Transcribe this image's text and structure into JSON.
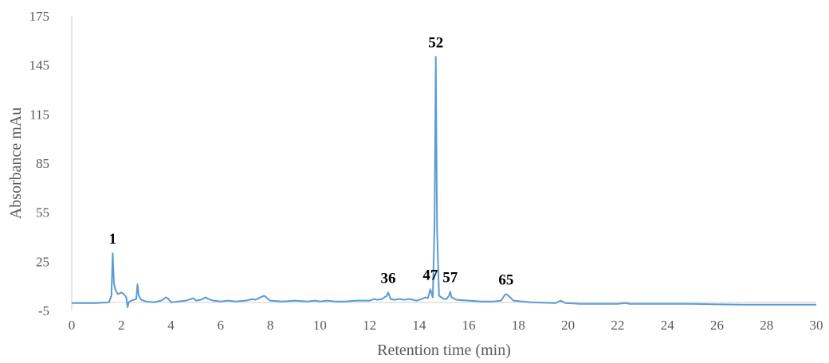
{
  "chart_data": {
    "type": "line",
    "title": "",
    "xlabel": "Retention time (min)",
    "ylabel": "Absorbance mAu",
    "xlim": [
      0,
      30
    ],
    "ylim": [
      -5,
      175
    ],
    "xticks": [
      0,
      2,
      4,
      6,
      8,
      10,
      12,
      14,
      16,
      18,
      20,
      22,
      24,
      26,
      28,
      30
    ],
    "yticks": [
      -5,
      25,
      55,
      85,
      115,
      145,
      175
    ],
    "grid": false,
    "legend": "none",
    "line_color": "#5b9bd5",
    "series": [
      {
        "x": [
          0,
          1.0,
          1.5,
          1.6,
          1.65,
          1.7,
          1.75,
          1.85,
          2.0,
          2.1,
          2.2,
          2.25,
          2.3,
          2.4,
          2.6,
          2.65,
          2.7,
          2.8,
          3.0,
          3.3,
          3.6,
          3.8,
          3.9,
          4.0,
          4.3,
          4.6,
          4.8,
          4.9,
          5.0,
          5.2,
          5.4,
          5.5,
          5.7,
          6.0,
          6.3,
          6.6,
          7.0,
          7.3,
          7.4,
          7.6,
          7.75,
          7.8,
          8.0,
          8.5,
          9.0,
          9.5,
          9.8,
          10.0,
          10.3,
          10.6,
          11.0,
          11.5,
          12.0,
          12.2,
          12.3,
          12.5,
          12.7,
          12.75,
          12.85,
          13.0,
          13.2,
          13.4,
          13.6,
          13.9,
          14.1,
          14.25,
          14.35,
          14.45,
          14.55,
          14.62,
          14.67,
          14.72,
          14.8,
          15.0,
          15.1,
          15.2,
          15.25,
          15.3,
          15.5,
          16.0,
          16.5,
          17.0,
          17.3,
          17.45,
          17.5,
          17.6,
          17.8,
          18.5,
          19.5,
          19.7,
          19.9,
          20.5,
          22.0,
          22.3,
          22.5,
          25.0,
          27.0,
          30.0
        ],
        "y": [
          -0.5,
          -0.5,
          0,
          4,
          30,
          12,
          8,
          5,
          6,
          5,
          3,
          -3,
          0,
          1,
          2,
          11,
          4,
          1.5,
          0.5,
          0,
          1,
          3,
          2,
          0,
          0.5,
          1,
          2,
          2.5,
          1,
          1.5,
          3,
          2,
          1,
          0.5,
          1,
          0.5,
          1,
          2,
          1.5,
          3,
          4,
          3.5,
          1,
          0.5,
          1,
          0.5,
          1,
          0.5,
          1,
          0.5,
          0.5,
          1,
          1,
          2,
          1.5,
          2,
          4,
          6,
          2,
          1.5,
          2,
          1.5,
          2,
          1,
          2,
          3,
          2.5,
          8,
          3,
          50,
          150,
          45,
          4,
          2,
          2,
          4,
          6.5,
          3,
          1.5,
          1,
          0.5,
          0.5,
          1,
          4.5,
          5,
          4,
          1,
          0,
          -0.5,
          1,
          -0.5,
          -1,
          -1,
          -0.5,
          -1,
          -1,
          -1.5,
          -1.5
        ]
      }
    ],
    "annotations": [
      {
        "label": "1",
        "x": 1.65,
        "y": 30
      },
      {
        "label": "36",
        "x": 12.75,
        "y": 6
      },
      {
        "label": "47",
        "x": 14.45,
        "y": 8
      },
      {
        "label": "52",
        "x": 14.67,
        "y": 150
      },
      {
        "label": "57",
        "x": 15.25,
        "y": 6.5
      },
      {
        "label": "65",
        "x": 17.5,
        "y": 5
      }
    ]
  }
}
